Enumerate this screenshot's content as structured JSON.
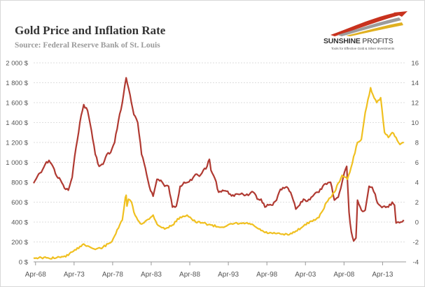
{
  "header": {
    "title": "Gold Price and Inflation Rate",
    "subtitle": "Source: Federal Reserve Bank of St. Louis"
  },
  "logo": {
    "name_bold": "SUNSHINE",
    "name_light": "PROFITS",
    "tagline": "Tools for Effective Gold & Silver Investments"
  },
  "colors": {
    "gold": "#f0c020",
    "inflation": "#b03a32",
    "grid": "#dddddd",
    "logo_accent": "#c8321e"
  },
  "chart_data": {
    "type": "line",
    "title": "Gold Price and Inflation Rate",
    "x_ticks": [
      "Apr-68",
      "Apr-73",
      "Apr-78",
      "Apr-83",
      "Apr-88",
      "Apr-93",
      "Apr-98",
      "Apr-03",
      "Apr-08",
      "Apr-13"
    ],
    "xlim": [
      1968.0,
      2016.3
    ],
    "y_left": {
      "ticks": [
        "0 $",
        "200 $",
        "400 $",
        "600 $",
        "800 $",
        "1 000 $",
        "1 200 $",
        "1 400 $",
        "1 600 $",
        "1 800 $",
        "2 000 $"
      ],
      "lim": [
        0,
        2000
      ]
    },
    "y_right": {
      "ticks": [
        "-4",
        "-2",
        "0",
        "2",
        "4",
        "6",
        "8",
        "10",
        "12",
        "14",
        "16"
      ],
      "lim": [
        -4,
        16
      ]
    },
    "series": [
      {
        "axis": "left",
        "x": [
          1968.0,
          1969.0,
          1970.0,
          1971.0,
          1971.5,
          1972.0,
          1972.5,
          1973.0,
          1973.5,
          1974.0,
          1974.5,
          1975.0,
          1976.0,
          1977.0,
          1978.0,
          1978.5,
          1979.0,
          1979.5,
          1979.9,
          1980.0,
          1980.1,
          1980.3,
          1980.7,
          1981.0,
          1981.5,
          1982.0,
          1982.5,
          1983.0,
          1983.5,
          1984.0,
          1985.0,
          1986.0,
          1987.0,
          1987.9,
          1988.5,
          1989.0,
          1990.0,
          1991.0,
          1992.0,
          1993.0,
          1994.0,
          1995.0,
          1996.0,
          1997.0,
          1998.0,
          1999.0,
          2000.0,
          2001.0,
          2002.0,
          2003.0,
          2004.0,
          2005.0,
          2006.0,
          2007.0,
          2008.0,
          2008.7,
          2009.0,
          2010.0,
          2010.5,
          2011.0,
          2011.7,
          2012.0,
          2012.5,
          2013.0,
          2013.5,
          2014.0,
          2014.5,
          2015.0,
          2015.5,
          2016.0
        ],
        "values": [
          40,
          42,
          36,
          42,
          45,
          58,
          65,
          100,
          120,
          155,
          180,
          160,
          125,
          148,
          193,
          260,
          340,
          420,
          650,
          670,
          560,
          630,
          600,
          500,
          420,
          380,
          410,
          430,
          470,
          380,
          330,
          370,
          450,
          470,
          430,
          400,
          390,
          370,
          350,
          360,
          385,
          385,
          385,
          340,
          295,
          285,
          280,
          270,
          310,
          360,
          410,
          445,
          600,
          700,
          870,
          830,
          900,
          1200,
          1230,
          1500,
          1750,
          1680,
          1600,
          1650,
          1300,
          1250,
          1300,
          1250,
          1180,
          1200
        ]
      },
      {
        "axis": "right",
        "x": [
          1968.0,
          1968.5,
          1969.0,
          1969.5,
          1970.0,
          1970.5,
          1971.0,
          1971.5,
          1972.0,
          1972.5,
          1973.0,
          1973.5,
          1974.0,
          1974.5,
          1975.0,
          1975.5,
          1976.0,
          1976.5,
          1977.0,
          1977.5,
          1978.0,
          1978.5,
          1979.0,
          1979.5,
          1980.0,
          1980.5,
          1981.0,
          1981.5,
          1982.0,
          1982.5,
          1983.0,
          1983.5,
          1984.0,
          1984.5,
          1985.0,
          1985.5,
          1986.0,
          1986.5,
          1987.0,
          1987.5,
          1988.0,
          1988.5,
          1989.0,
          1989.5,
          1990.0,
          1990.5,
          1990.8,
          1991.0,
          1991.5,
          1992.0,
          1992.5,
          1993.0,
          1993.5,
          1994.0,
          1994.5,
          1995.0,
          1995.5,
          1996.0,
          1996.5,
          1997.0,
          1997.5,
          1998.0,
          1998.5,
          1999.0,
          1999.5,
          2000.0,
          2000.5,
          2001.0,
          2001.5,
          2002.0,
          2002.5,
          2003.0,
          2003.5,
          2004.0,
          2004.5,
          2005.0,
          2005.5,
          2006.0,
          2006.5,
          2007.0,
          2007.5,
          2008.0,
          2008.3,
          2008.6,
          2008.9,
          2009.2,
          2009.5,
          2009.8,
          2010.0,
          2010.5,
          2011.0,
          2011.5,
          2011.9,
          2012.3,
          2012.6,
          2013.0,
          2013.5,
          2014.0,
          2014.5,
          2014.8,
          2015.0,
          2015.3,
          2015.6,
          2016.0
        ],
        "values": [
          3.9,
          4.6,
          5.0,
          5.8,
          6.2,
          5.6,
          4.6,
          4.2,
          3.4,
          3.2,
          4.5,
          7.5,
          10.0,
          11.8,
          11.2,
          9.2,
          6.8,
          5.6,
          5.8,
          6.8,
          7.0,
          8.0,
          10.2,
          12.0,
          14.5,
          12.8,
          10.8,
          10.0,
          6.8,
          5.4,
          3.6,
          2.6,
          4.3,
          4.2,
          3.6,
          3.6,
          1.5,
          1.6,
          3.6,
          4.0,
          4.0,
          4.2,
          4.8,
          4.6,
          5.2,
          5.6,
          6.3,
          5.2,
          4.4,
          3.0,
          3.2,
          3.1,
          2.8,
          2.6,
          2.8,
          2.9,
          2.7,
          2.8,
          3.0,
          2.3,
          2.3,
          1.5,
          1.7,
          1.7,
          2.2,
          3.3,
          3.4,
          3.4,
          2.6,
          1.3,
          1.7,
          2.3,
          2.1,
          2.5,
          2.9,
          3.0,
          3.6,
          3.8,
          4.0,
          2.2,
          2.5,
          4.0,
          5.0,
          5.6,
          1.0,
          -1.0,
          -1.9,
          -1.6,
          2.2,
          1.2,
          1.2,
          3.6,
          3.5,
          2.8,
          1.9,
          1.6,
          1.6,
          1.5,
          2.0,
          1.7,
          -0.1,
          0.0,
          0.0,
          0.2
        ]
      }
    ],
    "grid": "horizontal dashed"
  }
}
